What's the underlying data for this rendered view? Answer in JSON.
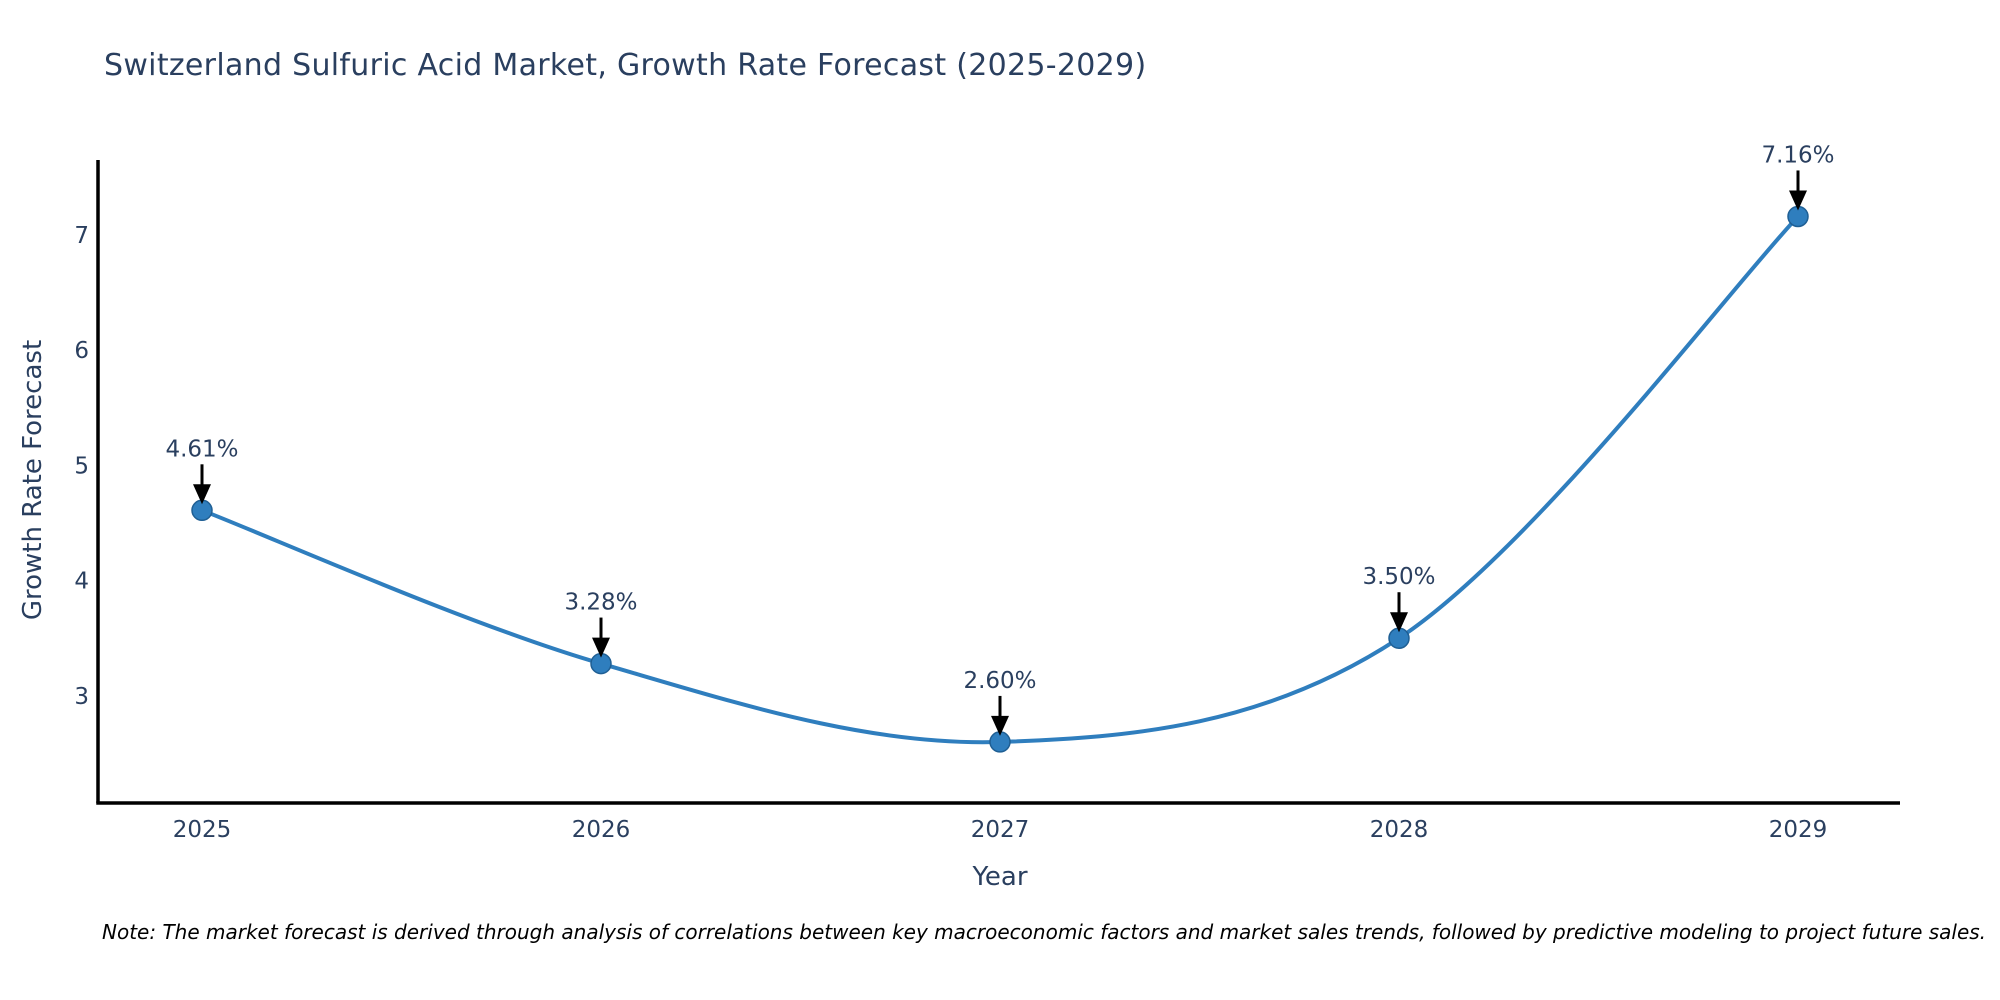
{
  "title": "Switzerland Sulfuric Acid Market, Growth Rate Forecast (2025-2029)",
  "note": "Note: The market forecast is derived through analysis of correlations between key macroeconomic factors and market sales trends, followed by predictive modeling to project future sales.",
  "chart_data": {
    "type": "line",
    "title": "Switzerland Sulfuric Acid Market, Growth Rate Forecast (2025-2029)",
    "xlabel": "Year",
    "ylabel": "Growth Rate Forecast",
    "x": [
      2025,
      2026,
      2027,
      2028,
      2029
    ],
    "values": [
      4.61,
      3.28,
      2.6,
      3.5,
      7.16
    ],
    "point_labels": [
      "4.61%",
      "3.28%",
      "2.60%",
      "3.50%",
      "7.16%"
    ],
    "y_ticks": [
      3,
      4,
      5,
      6,
      7
    ],
    "ylim": [
      2.07,
      7.65
    ],
    "line_shape": "spline",
    "grid": false,
    "legend": "none",
    "annotations": "value labels with downward black arrows at each data point",
    "colors": {
      "line": "#2f7ebe",
      "marker": "#2f7ebe",
      "marker_edge": "#1f5f94",
      "axis": "#000000",
      "text": "#2a3f5f",
      "annotation_arrow": "#000000",
      "note_text": "#000000",
      "background": "#ffffff"
    }
  }
}
